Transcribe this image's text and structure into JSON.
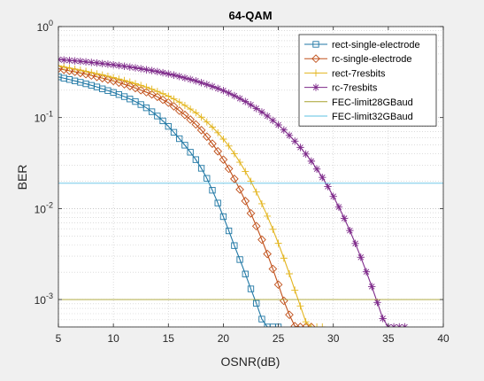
{
  "chart_data": {
    "type": "line",
    "title": "64-QAM",
    "xlabel": "OSNR(dB)",
    "ylabel": "BER",
    "xlim": [
      5,
      40
    ],
    "ylim": [
      0.0005,
      1
    ],
    "yscale": "log",
    "grid": true,
    "minor_grid": true,
    "legend_position": "top-right",
    "x_ticks": [
      {
        "value": 5,
        "label": "5"
      },
      {
        "value": 10,
        "label": "10"
      },
      {
        "value": 15,
        "label": "15"
      },
      {
        "value": 20,
        "label": "20"
      },
      {
        "value": 25,
        "label": "25"
      },
      {
        "value": 30,
        "label": "30"
      },
      {
        "value": 35,
        "label": "35"
      },
      {
        "value": 40,
        "label": "40"
      }
    ],
    "y_ticks": [
      {
        "value": 1,
        "base": "10",
        "exp": "0"
      },
      {
        "value": 0.1,
        "base": "10",
        "exp": "-1"
      },
      {
        "value": 0.01,
        "base": "10",
        "exp": "-2"
      },
      {
        "value": 0.001,
        "base": "10",
        "exp": "-3"
      }
    ],
    "series": [
      {
        "name": "rect-single-electrode",
        "color": "#1f77a4",
        "marker": "square",
        "x": [
          5,
          5.5,
          6,
          6.5,
          7,
          7.5,
          8,
          8.5,
          9,
          9.5,
          10,
          10.5,
          11,
          11.5,
          12,
          12.5,
          13,
          13.5,
          14,
          14.5,
          15,
          15.5,
          16,
          16.5,
          17,
          17.5,
          18,
          18.5,
          19,
          19.5,
          20,
          20.5,
          21,
          21.5,
          22,
          22.5,
          23,
          23.5,
          24,
          24.5,
          25
        ],
        "y": [
          0.28,
          0.271,
          0.262,
          0.253,
          0.244,
          0.235,
          0.226,
          0.217,
          0.207,
          0.198,
          0.189,
          0.179,
          0.17,
          0.16,
          0.15,
          0.139,
          0.128,
          0.116,
          0.104,
          0.092,
          0.08,
          0.0689,
          0.0586,
          0.0497,
          0.0416,
          0.0345,
          0.0277,
          0.0215,
          0.0159,
          0.0115,
          0.00815,
          0.00569,
          0.00392,
          0.00275,
          0.00191,
          0.00131,
          0.00091,
          0.00061,
          0.0005,
          0.0005,
          0.0005
        ]
      },
      {
        "name": "rc-single-electrode",
        "color": "#c0501a",
        "marker": "diamond",
        "x": [
          5,
          5.5,
          6,
          6.5,
          7,
          7.5,
          8,
          8.5,
          9,
          9.5,
          10,
          10.5,
          11,
          11.5,
          12,
          12.5,
          13,
          13.5,
          14,
          14.5,
          15,
          15.5,
          16,
          16.5,
          17,
          17.5,
          18,
          18.5,
          19,
          19.5,
          20,
          20.5,
          21,
          21.5,
          22,
          22.5,
          23,
          23.5,
          24,
          24.5,
          25,
          25.5,
          26,
          26.5,
          27,
          27.5,
          28
        ],
        "y": [
          0.345,
          0.336,
          0.327,
          0.318,
          0.309,
          0.3,
          0.29,
          0.28,
          0.271,
          0.262,
          0.252,
          0.242,
          0.232,
          0.222,
          0.211,
          0.2,
          0.19,
          0.18,
          0.169,
          0.157,
          0.146,
          0.133,
          0.119,
          0.107,
          0.0951,
          0.084,
          0.0728,
          0.0617,
          0.0517,
          0.0426,
          0.0345,
          0.0274,
          0.0212,
          0.0162,
          0.0121,
          0.00887,
          0.00641,
          0.00455,
          0.00317,
          0.00217,
          0.00146,
          0.00097,
          0.00068,
          0.00051,
          0.0005,
          0.0005,
          0.0005
        ]
      },
      {
        "name": "rect-7resbits",
        "color": "#e3b51f",
        "marker": "plus",
        "x": [
          5,
          5.5,
          6,
          6.5,
          7,
          7.5,
          8,
          8.5,
          9,
          9.5,
          10,
          10.5,
          11,
          11.5,
          12,
          12.5,
          13,
          13.5,
          14,
          14.5,
          15,
          15.5,
          16,
          16.5,
          17,
          17.5,
          18,
          18.5,
          19,
          19.5,
          20,
          20.5,
          21,
          21.5,
          22,
          22.5,
          23,
          23.5,
          24,
          24.5,
          25,
          25.5,
          26,
          26.5,
          27,
          27.5,
          28,
          28.5,
          29
        ],
        "y": [
          0.37,
          0.36,
          0.35,
          0.341,
          0.332,
          0.322,
          0.313,
          0.303,
          0.294,
          0.285,
          0.275,
          0.265,
          0.256,
          0.246,
          0.236,
          0.226,
          0.216,
          0.205,
          0.194,
          0.183,
          0.172,
          0.16,
          0.148,
          0.136,
          0.124,
          0.113,
          0.101,
          0.0895,
          0.0786,
          0.0681,
          0.058,
          0.0487,
          0.04,
          0.0323,
          0.0256,
          0.02,
          0.0152,
          0.0113,
          0.00826,
          0.00591,
          0.00415,
          0.00285,
          0.00192,
          0.00127,
          0.00085,
          0.00057,
          0.0005,
          0.0005,
          0.0005
        ]
      },
      {
        "name": "rc-7resbits",
        "color": "#7e2a8a",
        "marker": "star",
        "x": [
          5,
          5.5,
          6,
          6.5,
          7,
          7.5,
          8,
          8.5,
          9,
          9.5,
          10,
          10.5,
          11,
          11.5,
          12,
          12.5,
          13,
          13.5,
          14,
          14.5,
          15,
          15.5,
          16,
          16.5,
          17,
          17.5,
          18,
          18.5,
          19,
          19.5,
          20,
          20.5,
          21,
          21.5,
          22,
          22.5,
          23,
          23.5,
          24,
          24.5,
          25,
          25.5,
          26,
          26.5,
          27,
          27.5,
          28,
          28.5,
          29,
          29.5,
          30,
          30.5,
          31,
          31.5,
          32,
          32.5,
          33,
          33.5,
          34,
          34.5,
          35,
          35.5,
          36,
          36.5
        ],
        "y": [
          0.435,
          0.43,
          0.425,
          0.42,
          0.415,
          0.41,
          0.404,
          0.398,
          0.392,
          0.386,
          0.38,
          0.373,
          0.366,
          0.359,
          0.352,
          0.344,
          0.336,
          0.328,
          0.32,
          0.311,
          0.302,
          0.293,
          0.283,
          0.273,
          0.263,
          0.253,
          0.242,
          0.231,
          0.22,
          0.209,
          0.198,
          0.186,
          0.174,
          0.162,
          0.15,
          0.138,
          0.126,
          0.115,
          0.104,
          0.093,
          0.083,
          0.073,
          0.0637,
          0.055,
          0.047,
          0.0398,
          0.0332,
          0.0272,
          0.022,
          0.0175,
          0.0136,
          0.0104,
          0.0078,
          0.00573,
          0.00413,
          0.00292,
          0.00202,
          0.00139,
          0.00093,
          0.00062,
          0.0005,
          0.0005,
          0.0005,
          0.0005
        ]
      },
      {
        "name": "FEC-limit28GBaud",
        "color": "#a7a22d",
        "marker": "none",
        "x": [
          5,
          40
        ],
        "y": [
          0.001,
          0.001
        ]
      },
      {
        "name": "FEC-limit32GBaud",
        "color": "#5cc0e3",
        "marker": "none",
        "x": [
          5,
          40
        ],
        "y": [
          0.019,
          0.019
        ]
      }
    ]
  }
}
